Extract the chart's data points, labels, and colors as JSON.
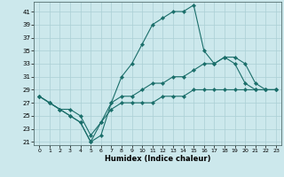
{
  "title": "",
  "xlabel": "Humidex (Indice chaleur)",
  "bg_color": "#cce8ec",
  "grid_color": "#aacfd4",
  "line_color": "#1a6e6a",
  "xlim": [
    -0.5,
    23.5
  ],
  "ylim": [
    20.5,
    42.5
  ],
  "yticks": [
    21,
    23,
    25,
    27,
    29,
    31,
    33,
    35,
    37,
    39,
    41
  ],
  "xticks": [
    0,
    1,
    2,
    3,
    4,
    5,
    6,
    7,
    8,
    9,
    10,
    11,
    12,
    13,
    14,
    15,
    16,
    17,
    18,
    19,
    20,
    21,
    22,
    23
  ],
  "line1_x": [
    0,
    1,
    2,
    3,
    4,
    5,
    6,
    7,
    8,
    9,
    10,
    11,
    12,
    13,
    14,
    15,
    16,
    17,
    18,
    19,
    20,
    21,
    22,
    23
  ],
  "line1_y": [
    28,
    27,
    26,
    25,
    24,
    21,
    22,
    27,
    31,
    33,
    36,
    39,
    40,
    41,
    41,
    42,
    35,
    33,
    34,
    33,
    30,
    29,
    29,
    29
  ],
  "line2_x": [
    0,
    1,
    2,
    3,
    4,
    5,
    6,
    7,
    8,
    9,
    10,
    11,
    12,
    13,
    14,
    15,
    16,
    17,
    18,
    19,
    20,
    21,
    22,
    23
  ],
  "line2_y": [
    28,
    27,
    26,
    26,
    25,
    22,
    24,
    27,
    28,
    28,
    29,
    30,
    30,
    31,
    31,
    32,
    33,
    33,
    34,
    34,
    33,
    30,
    29,
    29
  ],
  "line3_x": [
    0,
    1,
    2,
    3,
    4,
    5,
    6,
    7,
    8,
    9,
    10,
    11,
    12,
    13,
    14,
    15,
    16,
    17,
    18,
    19,
    20,
    21,
    22,
    23
  ],
  "line3_y": [
    28,
    27,
    26,
    25,
    24,
    21,
    24,
    26,
    27,
    27,
    27,
    27,
    28,
    28,
    28,
    29,
    29,
    29,
    29,
    29,
    29,
    29,
    29,
    29
  ]
}
